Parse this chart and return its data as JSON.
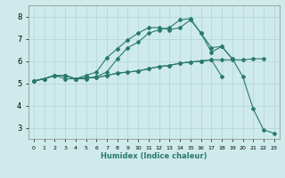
{
  "title": "",
  "xlabel": "Humidex (Indice chaleur)",
  "xlim": [
    -0.5,
    23.5
  ],
  "ylim": [
    2.5,
    8.5
  ],
  "yticks": [
    3,
    4,
    5,
    6,
    7,
    8
  ],
  "xticks": [
    0,
    1,
    2,
    3,
    4,
    5,
    6,
    7,
    8,
    9,
    10,
    11,
    12,
    13,
    14,
    15,
    16,
    17,
    18,
    19,
    20,
    21,
    22,
    23
  ],
  "bg_color": "#ceeaea",
  "grid_color": "#b8d8d8",
  "line_color": "#2a7a6a",
  "series": [
    {
      "x": [
        0,
        1,
        2,
        3,
        4,
        5,
        6,
        7,
        8,
        9,
        10,
        11,
        12,
        13,
        14,
        15,
        16,
        17,
        18,
        19,
        20,
        21,
        22
      ],
      "y": [
        5.1,
        5.2,
        5.35,
        5.35,
        5.2,
        5.25,
        5.25,
        5.35,
        5.45,
        5.5,
        5.55,
        5.65,
        5.75,
        5.8,
        5.9,
        5.95,
        6.0,
        6.05,
        6.05,
        6.05,
        6.05,
        6.1,
        6.1
      ]
    },
    {
      "x": [
        0,
        1,
        2,
        3,
        4,
        5,
        6,
        7,
        8,
        9,
        10,
        11,
        12,
        13,
        14,
        15,
        16,
        17,
        18,
        19,
        20,
        21,
        22,
        23
      ],
      "y": [
        5.1,
        5.2,
        5.35,
        5.35,
        5.2,
        5.2,
        5.3,
        5.5,
        6.1,
        6.6,
        6.85,
        7.25,
        7.4,
        7.5,
        7.85,
        7.9,
        7.25,
        6.4,
        6.65,
        6.1,
        5.3,
        3.85,
        2.9,
        2.75
      ]
    },
    {
      "x": [
        0,
        1,
        2,
        3,
        4,
        5,
        6,
        7,
        8,
        9,
        10,
        11,
        12,
        13,
        14,
        15,
        16,
        17,
        18,
        19,
        20
      ],
      "y": [
        5.1,
        5.2,
        5.35,
        5.35,
        5.2,
        5.25,
        5.25,
        5.35,
        5.45,
        5.5,
        5.55,
        5.65,
        5.75,
        5.8,
        5.9,
        5.95,
        6.0,
        6.05,
        5.3,
        null,
        null
      ]
    },
    {
      "x": [
        0,
        1,
        2,
        3,
        4,
        5,
        6,
        7,
        8,
        9,
        10,
        11,
        12,
        13,
        14,
        15,
        16,
        17,
        18,
        19,
        20,
        21,
        22,
        23
      ],
      "y": [
        5.1,
        5.2,
        5.35,
        5.2,
        5.2,
        5.35,
        5.5,
        6.15,
        6.55,
        6.95,
        7.25,
        7.5,
        7.5,
        7.4,
        7.5,
        7.85,
        7.25,
        6.6,
        6.65,
        6.1,
        null,
        null,
        null,
        null
      ]
    }
  ]
}
